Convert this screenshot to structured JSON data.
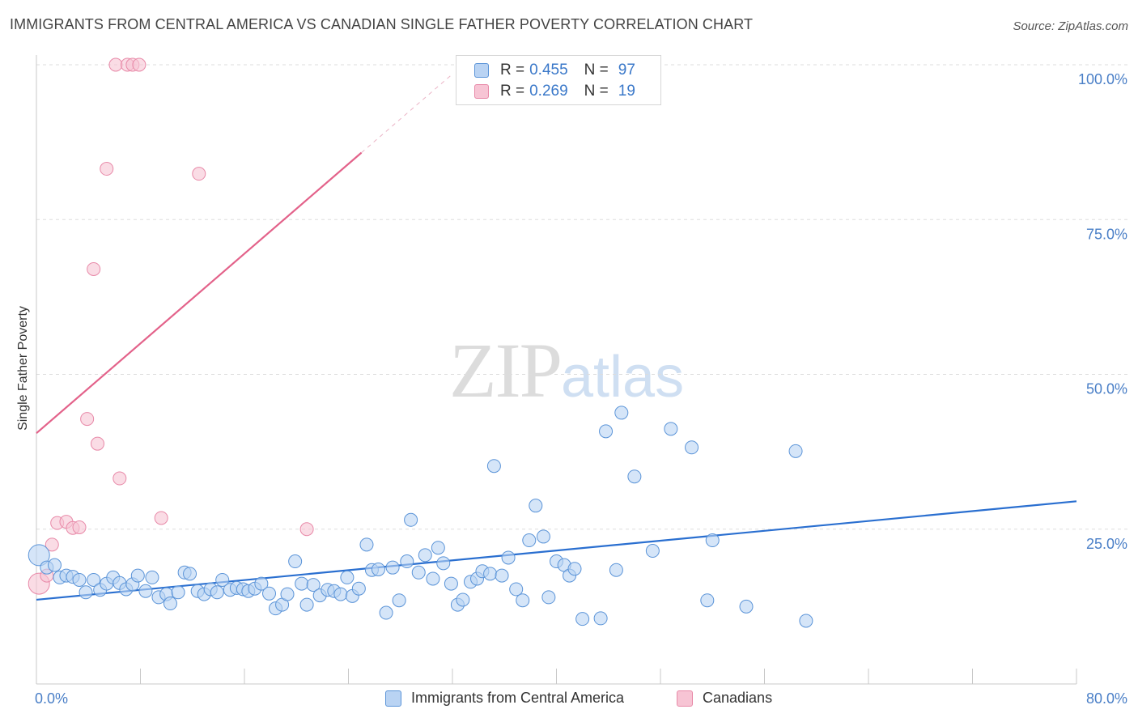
{
  "header": {
    "title": "IMMIGRANTS FROM CENTRAL AMERICA VS CANADIAN SINGLE FATHER POVERTY CORRELATION CHART",
    "source": "Source: ZipAtlas.com"
  },
  "watermark": {
    "zip": "ZIP",
    "atlas": "atlas"
  },
  "legend_top": {
    "rows": [
      {
        "r_label": "R =",
        "r_value": "0.455",
        "n_label": "N =",
        "n_value": "97"
      },
      {
        "r_label": "R =",
        "r_value": "0.269",
        "n_label": "N =",
        "n_value": "19"
      }
    ]
  },
  "legend_bottom": {
    "items": [
      {
        "label": "Immigrants from Central America"
      },
      {
        "label": "Canadians"
      }
    ]
  },
  "colors": {
    "blue_fill": "#b9d3f3",
    "blue_stroke": "#5b94d8",
    "blue_line": "#2a6fd0",
    "pink_fill": "#f7c4d4",
    "pink_stroke": "#e889a8",
    "pink_line": "#e3628a",
    "tick_text": "#4a7fc7",
    "grid": "#dddddd"
  },
  "chart_data": {
    "type": "scatter",
    "title": "IMMIGRANTS FROM CENTRAL AMERICA VS CANADIAN SINGLE FATHER POVERTY CORRELATION CHART",
    "xlabel": "",
    "ylabel": "Single Father Poverty",
    "xlim": [
      0,
      80
    ],
    "ylim": [
      0,
      100
    ],
    "x_tick_labels": [
      "0.0%",
      "80.0%"
    ],
    "y_tick_labels": [
      {
        "value": 25,
        "label": "25.0%"
      },
      {
        "value": 50,
        "label": "50.0%"
      },
      {
        "value": 75,
        "label": "75.0%"
      },
      {
        "value": 100,
        "label": "100.0%"
      }
    ],
    "grid": true,
    "legend_placement": "bottom",
    "series": [
      {
        "name": "Immigrants from Central America",
        "color": "blue",
        "R": 0.455,
        "N": 97,
        "trend": {
          "x": [
            0,
            80
          ],
          "y": [
            13.6,
            29.5
          ]
        },
        "points": [
          [
            0.2,
            20.8
          ],
          [
            0.8,
            18.8
          ],
          [
            1.4,
            19.2
          ],
          [
            1.8,
            17.2
          ],
          [
            2.3,
            17.5
          ],
          [
            2.8,
            17.3
          ],
          [
            3.3,
            16.8
          ],
          [
            3.8,
            14.8
          ],
          [
            4.4,
            16.8
          ],
          [
            4.9,
            15.2
          ],
          [
            5.4,
            16.2
          ],
          [
            5.9,
            17.2
          ],
          [
            6.4,
            16.3
          ],
          [
            6.9,
            15.3
          ],
          [
            7.4,
            16.1
          ],
          [
            7.8,
            17.5
          ],
          [
            8.4,
            15.0
          ],
          [
            8.9,
            17.2
          ],
          [
            9.4,
            14.0
          ],
          [
            10.0,
            14.5
          ],
          [
            10.3,
            13.0
          ],
          [
            10.9,
            14.8
          ],
          [
            11.4,
            18.0
          ],
          [
            11.8,
            17.8
          ],
          [
            12.4,
            15.0
          ],
          [
            12.9,
            14.5
          ],
          [
            13.4,
            15.3
          ],
          [
            13.9,
            14.8
          ],
          [
            14.3,
            16.8
          ],
          [
            14.9,
            15.2
          ],
          [
            15.4,
            15.5
          ],
          [
            15.9,
            15.3
          ],
          [
            16.3,
            15.0
          ],
          [
            16.8,
            15.4
          ],
          [
            17.3,
            16.2
          ],
          [
            17.9,
            14.6
          ],
          [
            18.4,
            12.2
          ],
          [
            18.9,
            12.8
          ],
          [
            19.3,
            14.5
          ],
          [
            19.9,
            19.8
          ],
          [
            20.4,
            16.2
          ],
          [
            20.8,
            12.8
          ],
          [
            21.3,
            16.0
          ],
          [
            21.8,
            14.3
          ],
          [
            22.4,
            15.2
          ],
          [
            22.9,
            15.0
          ],
          [
            23.4,
            14.5
          ],
          [
            23.9,
            17.2
          ],
          [
            24.3,
            14.2
          ],
          [
            24.8,
            15.4
          ],
          [
            25.4,
            22.5
          ],
          [
            25.8,
            18.4
          ],
          [
            26.3,
            18.5
          ],
          [
            26.9,
            11.5
          ],
          [
            27.4,
            18.8
          ],
          [
            27.9,
            13.5
          ],
          [
            28.5,
            19.8
          ],
          [
            28.8,
            26.5
          ],
          [
            29.4,
            18.0
          ],
          [
            29.9,
            20.8
          ],
          [
            30.5,
            17.0
          ],
          [
            30.9,
            22.0
          ],
          [
            31.3,
            19.5
          ],
          [
            31.9,
            16.2
          ],
          [
            32.4,
            12.8
          ],
          [
            32.8,
            13.6
          ],
          [
            33.4,
            16.5
          ],
          [
            33.9,
            17.0
          ],
          [
            34.3,
            18.2
          ],
          [
            34.9,
            17.8
          ],
          [
            35.2,
            35.2
          ],
          [
            35.8,
            17.5
          ],
          [
            36.3,
            20.4
          ],
          [
            36.9,
            15.3
          ],
          [
            37.4,
            13.5
          ],
          [
            37.9,
            23.2
          ],
          [
            38.4,
            28.8
          ],
          [
            39.0,
            23.8
          ],
          [
            39.4,
            14.0
          ],
          [
            40.0,
            19.8
          ],
          [
            40.6,
            19.2
          ],
          [
            41.0,
            17.5
          ],
          [
            41.4,
            18.6
          ],
          [
            42.0,
            10.5
          ],
          [
            43.4,
            10.6
          ],
          [
            43.8,
            40.8
          ],
          [
            44.6,
            18.4
          ],
          [
            45.0,
            43.8
          ],
          [
            46.0,
            33.5
          ],
          [
            47.4,
            21.5
          ],
          [
            48.8,
            41.2
          ],
          [
            50.4,
            38.2
          ],
          [
            51.6,
            13.5
          ],
          [
            52.0,
            23.2
          ],
          [
            54.6,
            12.5
          ],
          [
            58.4,
            37.6
          ],
          [
            59.2,
            10.2
          ]
        ]
      },
      {
        "name": "Canadians",
        "color": "pink",
        "R": 0.269,
        "N": 19,
        "trend": {
          "x": [
            0,
            25
          ],
          "y": [
            40.5,
            85.8
          ]
        },
        "trend_dashed": {
          "x": [
            25,
            32
          ],
          "y": [
            85.8,
            98.5
          ]
        },
        "points": [
          [
            0.2,
            16.2
          ],
          [
            0.8,
            17.5
          ],
          [
            1.2,
            22.5
          ],
          [
            1.6,
            26.0
          ],
          [
            2.3,
            26.2
          ],
          [
            2.8,
            25.2
          ],
          [
            3.3,
            25.3
          ],
          [
            3.9,
            42.8
          ],
          [
            4.4,
            67.0
          ],
          [
            4.7,
            38.8
          ],
          [
            5.4,
            83.2
          ],
          [
            6.1,
            100
          ],
          [
            6.4,
            33.2
          ],
          [
            7.0,
            100
          ],
          [
            7.4,
            100
          ],
          [
            7.9,
            100
          ],
          [
            9.6,
            26.8
          ],
          [
            12.5,
            82.4
          ],
          [
            20.8,
            25.0
          ]
        ]
      }
    ]
  }
}
